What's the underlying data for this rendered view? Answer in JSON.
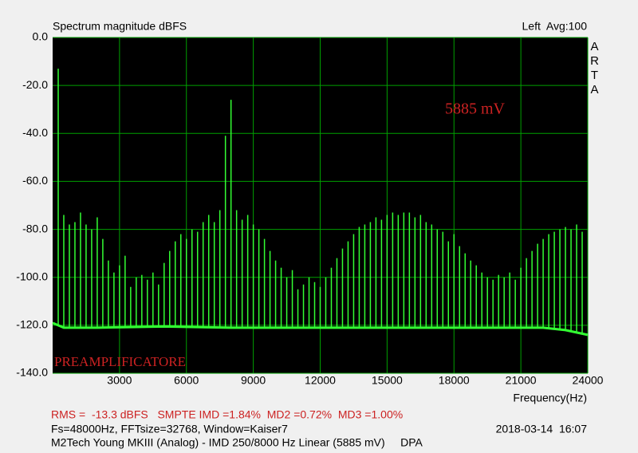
{
  "chart_data": {
    "type": "spectrum",
    "title": "Spectrum magnitude dBFS",
    "channel_info": "Left  Avg:100",
    "brand": "ARTA",
    "annotation_level": "5885 mV",
    "annotation_device": "PREAMPLIFICATORE",
    "x_label": "Frequency(Hz)",
    "xlim": [
      0,
      24000
    ],
    "xticks": [
      3000,
      6000,
      9000,
      12000,
      15000,
      18000,
      21000,
      24000
    ],
    "ylim": [
      -140,
      0
    ],
    "yticks": [
      {
        "value": 0,
        "label": "0.0"
      },
      {
        "value": -20,
        "label": "-20.0"
      },
      {
        "value": -40,
        "label": "-40.0"
      },
      {
        "value": -60,
        "label": "-60.0"
      },
      {
        "value": -80,
        "label": "-80.0"
      },
      {
        "value": -100,
        "label": "-100.0"
      },
      {
        "value": -120,
        "label": "-120.0"
      },
      {
        "value": -140,
        "label": "-140.0"
      }
    ],
    "grid": true,
    "grid_color": "#00a000",
    "background": "#000000",
    "color": "#33ff33",
    "peaks": {
      "x": [
        250,
        500,
        750,
        1000,
        1250,
        1500,
        1750,
        2000,
        2250,
        2500,
        2750,
        3000,
        3250,
        3500,
        3750,
        4000,
        4250,
        4500,
        4750,
        5000,
        5250,
        5500,
        5750,
        6000,
        6250,
        6500,
        6750,
        7000,
        7250,
        7500,
        7750,
        8000,
        8250,
        8500,
        8750,
        9000,
        9250,
        9500,
        9750,
        10000,
        10250,
        10500,
        10750,
        11000,
        11250,
        11500,
        11750,
        12000,
        12250,
        12500,
        12750,
        13000,
        13250,
        13500,
        13750,
        14000,
        14250,
        14500,
        14750,
        15000,
        15250,
        15500,
        15750,
        16000,
        16250,
        16500,
        16750,
        17000,
        17250,
        17500,
        17750,
        18000,
        18250,
        18500,
        18750,
        19000,
        19250,
        19500,
        19750,
        20000,
        20250,
        20500,
        20750,
        21000,
        21250,
        21500,
        21750,
        22000,
        22250,
        22500,
        22750,
        23000,
        23250,
        23500,
        23750
      ],
      "values": [
        -13,
        -74,
        -78,
        -77,
        -73,
        -78,
        -80,
        -75,
        -84,
        -93,
        -98,
        -95,
        -91,
        -104,
        -100,
        -99,
        -101,
        -98,
        -103,
        -94,
        -89,
        -85,
        -82,
        -84,
        -80,
        -81,
        -77,
        -74,
        -77,
        -72,
        -41,
        -26,
        -72,
        -76,
        -74,
        -78,
        -80,
        -84,
        -89,
        -93,
        -96,
        -100,
        -97,
        -105,
        -103,
        -100,
        -102,
        -104,
        -100,
        -96,
        -92,
        -88,
        -85,
        -82,
        -79,
        -78,
        -77,
        -75,
        -76,
        -74,
        -73,
        -74,
        -73,
        -73,
        -75,
        -74,
        -77,
        -78,
        -80,
        -81,
        -85,
        -82,
        -87,
        -90,
        -93,
        -95,
        -98,
        -100,
        -101,
        -99,
        -100,
        -98,
        -101,
        -96,
        -92,
        -89,
        -86,
        -84,
        -82,
        -81,
        -80,
        -79,
        -80,
        -78,
        -81
      ]
    },
    "noise_floor": {
      "x": [
        0,
        500,
        2000,
        5000,
        8000,
        12000,
        16000,
        20000,
        22000,
        23000,
        23500,
        24000
      ],
      "values": [
        -119,
        -121,
        -121,
        -120.5,
        -121,
        -121,
        -121,
        -121,
        -121,
        -122,
        -123,
        -124
      ]
    },
    "footer": {
      "measurements": "RMS =  -13.3 dBFS   SMPTE IMD =1.84%  MD2 =0.72%  MD3 =1.00%",
      "settings": "Fs=48000Hz, FFTsize=32768, Window=Kaiser7",
      "timestamp": "2018-03-14  16:07",
      "description": "M2Tech Young MKIII (Analog) - IMD 250/8000 Hz Linear (5885 mV)     DPA"
    }
  }
}
